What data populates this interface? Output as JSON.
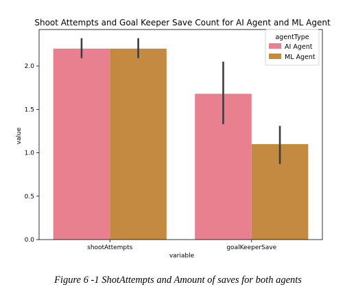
{
  "chart_data": {
    "type": "bar",
    "title": "Shoot Attempts and Goal Keeper Save Count for AI Agent and ML Agent",
    "xlabel": "variable",
    "ylabel": "value",
    "categories": [
      "shootAttempts",
      "goalKeeperSave"
    ],
    "ylim": [
      0,
      2.42
    ],
    "yticks": [
      0.0,
      0.5,
      1.0,
      1.5,
      2.0
    ],
    "ytick_labels": [
      "0.0",
      "0.5",
      "1.0",
      "1.5",
      "2.0"
    ],
    "legend": {
      "title": "agentType",
      "placement": "top-right"
    },
    "series": [
      {
        "name": "AI Agent",
        "color": "#e8808f",
        "values": [
          2.2,
          1.68
        ],
        "err_low": [
          2.09,
          1.33
        ],
        "err_high": [
          2.32,
          2.05
        ]
      },
      {
        "name": "ML Agent",
        "color": "#c48a42",
        "values": [
          2.2,
          1.1
        ],
        "err_low": [
          2.09,
          0.87
        ],
        "err_high": [
          2.32,
          1.31
        ]
      }
    ],
    "error_bar_color": "#3d3d3d",
    "grid": false
  },
  "caption": "Figure 6 -1 ShotAttempts and Amount of saves for both agents"
}
